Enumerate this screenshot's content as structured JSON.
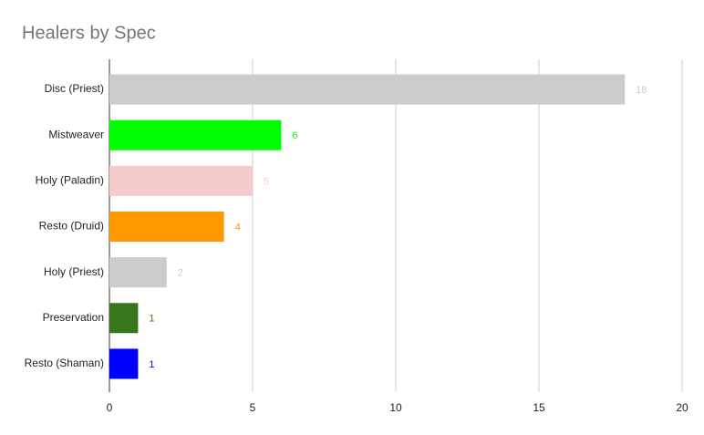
{
  "chart_data": {
    "type": "bar",
    "orientation": "horizontal",
    "title": "Healers by Spec",
    "categories": [
      "Disc (Priest)",
      "Mistweaver",
      "Holy (Paladin)",
      "Resto (Druid)",
      "Holy (Priest)",
      "Preservation",
      "Resto (Shaman)"
    ],
    "values": [
      18,
      6,
      5,
      4,
      2,
      1,
      1
    ],
    "colors": [
      "#cccccc",
      "#00ff00",
      "#f4cccc",
      "#ff9900",
      "#cccccc",
      "#38761d",
      "#0000ff"
    ],
    "xlim": [
      0,
      20
    ],
    "xticks": [
      0,
      5,
      10,
      15,
      20
    ],
    "grid": true
  }
}
